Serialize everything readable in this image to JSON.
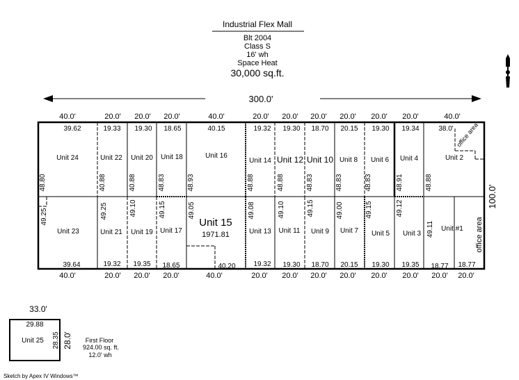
{
  "header": {
    "title": "Industrial Flex Mall",
    "built": "Blt 2004",
    "class": "Class S",
    "wall_height": "16' wh",
    "heat": "Space Heat",
    "area": "30,000 sq.ft."
  },
  "overall": {
    "width": "300.0'",
    "depth": "100.0'"
  },
  "top_dims": [
    "40.0'",
    "20.0'",
    "20.0'",
    "20.0'",
    "40.0'",
    "20.0'",
    "20.0'",
    "20.0'",
    "20.0'",
    "20.0'",
    "20.0'",
    "40.0'"
  ],
  "bottom_dims": [
    "40.0'",
    "20.0'",
    "20.0'",
    "20.0'",
    "40.0'",
    "20.0'",
    "20.0'",
    "20.0'",
    "20.0'",
    "20.0'",
    "20.0'",
    "20.0'",
    "20.0'"
  ],
  "top_units": [
    "Unit 24",
    "Unit 22",
    "Unit 20",
    "Unit 18",
    "Unit 16",
    "Unit 14",
    "Unit 12",
    "Unit 10",
    "Unit 8",
    "Unit 6",
    "Unit 4",
    "Unit 2"
  ],
  "bottom_units": [
    "Unit 23",
    "Unit 21",
    "Unit 19",
    "Unit 17",
    "Unit 13",
    "Unit 11",
    "Unit 9",
    "Unit 7",
    "Unit 5",
    "Unit 3",
    "Unit #1"
  ],
  "unit15": {
    "name": "Unit 15",
    "area": "1971.81"
  },
  "top_widths": [
    "39.62",
    "19.33",
    "19.30",
    "18.65",
    "40.15",
    "19.32",
    "19.30",
    "18.70",
    "20.15",
    "19.30",
    "19.34",
    "38.0'"
  ],
  "bottom_widths": [
    "39.64",
    "19.32",
    "19.35",
    "18.65",
    "40.20",
    "19.32",
    "19.30",
    "18.70",
    "20.15",
    "19.30",
    "19.35",
    "18.77",
    "18.77"
  ],
  "top_depths": [
    "48.80",
    "40.88",
    "40.88",
    "48.83",
    "48.93",
    "48.88",
    "48.88",
    "48.83",
    "48.83",
    "48.83",
    "48.91",
    "48.88"
  ],
  "bottom_depths": [
    "49.25",
    "49.25",
    "49.10",
    "49.15",
    "49.05",
    "49.08",
    "49.10",
    "49.15",
    "49.00",
    "49.15",
    "49.12",
    "49.11"
  ],
  "office_labels": [
    "office area",
    "office area"
  ],
  "first_floor": {
    "width": "33.0'",
    "inner_width": "29.88",
    "unit": "Unit 25",
    "inner_depth": "28.35",
    "depth": "28.0'",
    "label": "First Floor",
    "area": "924.00 sq. ft.",
    "wall_height": "12.0' wh"
  },
  "footer": "Sketch by Apex IV Windows™",
  "icons": {
    "compass": "north-arrow-icon"
  }
}
